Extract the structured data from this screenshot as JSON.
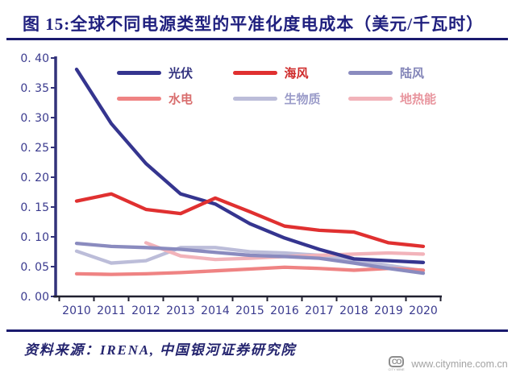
{
  "title": "图 15:全球不同电源类型的平准化度电成本（美元/千瓦时）",
  "accent_color": "#1f1f7e",
  "chart_data": {
    "type": "line",
    "title": "全球不同电源类型的平准化度电成本（美元/千瓦时）",
    "x": [
      2010,
      2011,
      2012,
      2013,
      2014,
      2015,
      2016,
      2017,
      2018,
      2019,
      2020
    ],
    "ylim": [
      0,
      0.4
    ],
    "y_ticks": [
      0,
      0.05,
      0.1,
      0.15,
      0.2,
      0.25,
      0.3,
      0.35,
      0.4
    ],
    "y_tick_labels": [
      "0. 00",
      "0. 05",
      "0. 10",
      "0. 15",
      "0. 20",
      "0. 25",
      "0. 30",
      "0. 35",
      "0. 40"
    ],
    "grid": false,
    "legend_position": "top-inside-two-rows",
    "series": [
      {
        "name": "光伏",
        "slug": "solar-pv",
        "color": "#35358f",
        "label_color": "#32327f",
        "values": [
          0.381,
          0.29,
          0.223,
          0.172,
          0.155,
          0.122,
          0.098,
          0.079,
          0.063,
          0.06,
          0.057
        ]
      },
      {
        "name": "海风",
        "slug": "offshore-wind",
        "color": "#e03030",
        "label_color": "#cf2b2b",
        "values": [
          0.16,
          0.172,
          0.146,
          0.139,
          0.165,
          0.142,
          0.118,
          0.111,
          0.108,
          0.09,
          0.084
        ]
      },
      {
        "name": "陆风",
        "slug": "onshore-wind",
        "color": "#8a8bbf",
        "label_color": "#8385b8",
        "values": [
          0.089,
          0.084,
          0.082,
          0.079,
          0.074,
          0.069,
          0.067,
          0.064,
          0.056,
          0.047,
          0.039
        ]
      },
      {
        "name": "水电",
        "slug": "hydropower",
        "color": "#ef8383",
        "label_color": "#d96e6e",
        "values": [
          0.038,
          0.037,
          0.038,
          0.04,
          0.043,
          0.046,
          0.049,
          0.047,
          0.044,
          0.047,
          0.044
        ]
      },
      {
        "name": "生物质",
        "slug": "biomass",
        "color": "#bcbdd9",
        "label_color": "#9b9cc9",
        "values": [
          0.076,
          0.056,
          0.06,
          0.082,
          0.082,
          0.075,
          0.073,
          0.069,
          0.061,
          0.052,
          0.043
        ]
      },
      {
        "name": "地热能",
        "slug": "geothermal",
        "color": "#f2b3ba",
        "label_color": "#e8959e",
        "values": [
          null,
          null,
          0.09,
          0.068,
          0.062,
          0.064,
          0.067,
          0.069,
          0.071,
          0.073,
          0.071
        ]
      }
    ],
    "draw_order": [
      4,
      5,
      3,
      2,
      0,
      1
    ],
    "axis_color": "#32327a",
    "x_axis_color": "#202030",
    "tick_label_color": "#3a3a8e"
  },
  "footer": {
    "source": "资料来源：IRENA, 中国银河证券研究院",
    "website": "www.citymine.com.cn",
    "logo_text": "CO",
    "logo_subtext": "CITY MINE"
  }
}
